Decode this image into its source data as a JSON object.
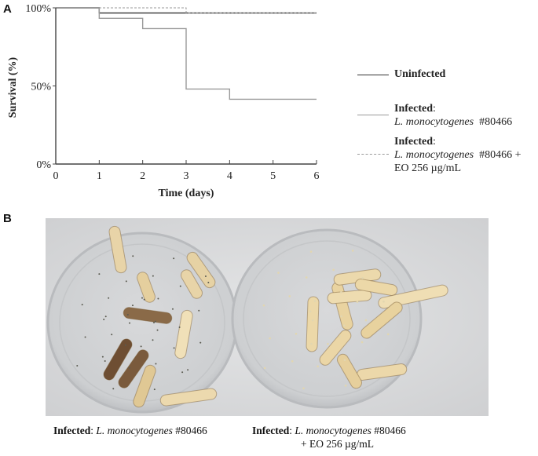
{
  "panels": {
    "a": "A",
    "b": "B"
  },
  "chart_data": {
    "type": "line",
    "step": true,
    "xlabel": "Time (days)",
    "ylabel": "Survival (%)",
    "xlim": [
      0,
      6
    ],
    "ylim": [
      0,
      100
    ],
    "xticks": [
      "0",
      "1",
      "2",
      "3",
      "4",
      "5",
      "6"
    ],
    "yticks": [
      {
        "v": 0,
        "label": "0%"
      },
      {
        "v": 50,
        "label": "50%"
      },
      {
        "v": 100,
        "label": "100%"
      }
    ],
    "grid": false,
    "legend_placement": "right",
    "series": [
      {
        "name": "Uninfected",
        "color": "#333333",
        "dash": "solid",
        "x": [
          0,
          1,
          6
        ],
        "y": [
          100,
          96.7,
          96.7
        ]
      },
      {
        "name": "Infected: L. monocytogenes #80466",
        "color": "#999999",
        "dash": "solid",
        "x": [
          0,
          1,
          2,
          3,
          4,
          6
        ],
        "y": [
          100,
          93.3,
          86.7,
          48,
          41.5,
          41.5
        ]
      },
      {
        "name": "Infected: L. monocytogenes #80466 + EO 256 µg/mL",
        "color": "#999999",
        "dash": "dashed",
        "x": [
          0,
          3,
          6
        ],
        "y": [
          100,
          96.7,
          96.7
        ]
      }
    ]
  },
  "legend": {
    "uninfected": "Uninfected",
    "infected_label": "Infected",
    "colon": ":",
    "species": "L. monocytogenes",
    "strain": "#80466",
    "strain_plus": "#80466 +",
    "eo": "EO 256 µg/mL"
  },
  "captions": {
    "left": {
      "bold": "Infected",
      "colon": ": ",
      "species": "L. monocytogenes",
      "strain": " #80466"
    },
    "right": {
      "bold": "Infected",
      "colon": ": ",
      "species": "L. monocytogenes",
      "strain": " #80466",
      "line2": "+ EO 256 µg/mL"
    }
  }
}
